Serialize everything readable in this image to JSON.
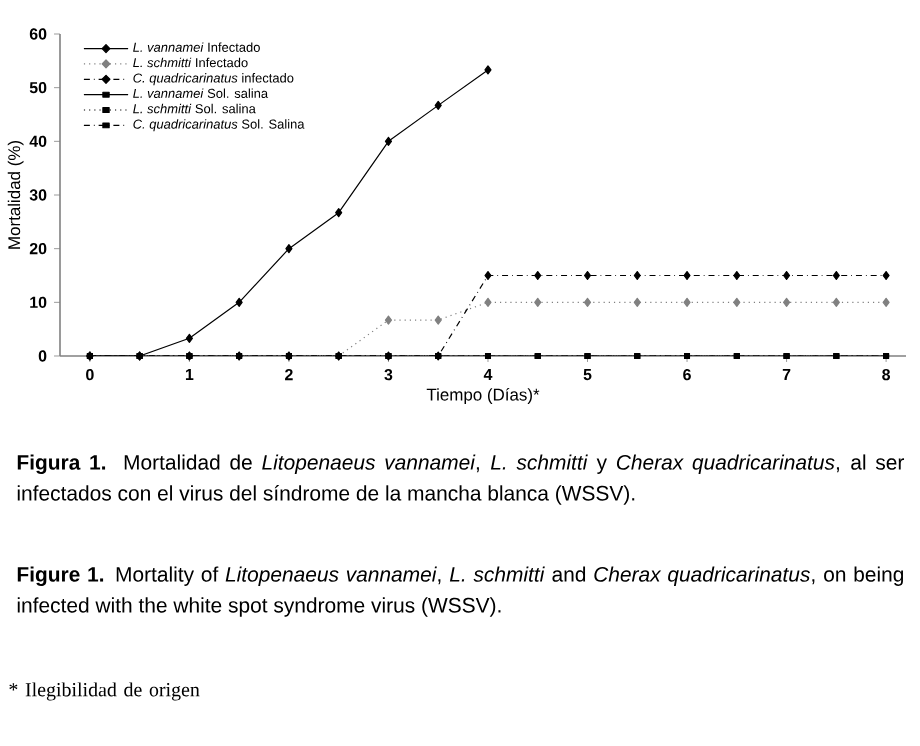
{
  "chart_data": {
    "type": "line",
    "xlabel": "Tiempo (Días)*",
    "ylabel": "Mortalidad (%)",
    "x": [
      0,
      0.5,
      1,
      1.5,
      2,
      2.5,
      3,
      3.5,
      4,
      4.5,
      5,
      5.5,
      6,
      6.5,
      7,
      7.5,
      8
    ],
    "series": [
      {
        "name": "*L. vannamei* Infectado",
        "color": "#000000",
        "marker": "diamond",
        "line_style": "solid",
        "values": [
          0,
          0,
          3.3,
          10,
          20,
          26.7,
          40,
          46.7,
          53.3,
          null,
          null,
          null,
          null,
          null,
          null,
          null,
          null
        ]
      },
      {
        "name": "*L. schmitti* Infectado",
        "color": "#808080",
        "marker": "diamond",
        "line_style": "dotted",
        "values": [
          0,
          0,
          0,
          0,
          0,
          0,
          6.7,
          6.7,
          10,
          10,
          10,
          10,
          10,
          10,
          10,
          10,
          10
        ]
      },
      {
        "name": "*C. quadricarinatus* infectado",
        "color": "#000000",
        "marker": "diamond",
        "line_style": "dashed",
        "values": [
          0,
          0,
          0,
          0,
          0,
          0,
          0,
          0,
          15,
          15,
          15,
          15,
          15,
          15,
          15,
          15,
          15
        ]
      },
      {
        "name": "*L. vannamei* Sol. salina",
        "color": "#000000",
        "marker": "square",
        "line_style": "solid",
        "values": [
          0,
          0,
          0,
          0,
          0,
          0,
          0,
          0,
          0,
          0,
          0,
          0,
          0,
          0,
          0,
          0,
          0
        ]
      },
      {
        "name": "*L. schmitti* Sol. salina",
        "color": "#000000",
        "marker": "square",
        "line_style": "dotted",
        "values": [
          0,
          0,
          0,
          0,
          0,
          0,
          0,
          0,
          0,
          0,
          0,
          0,
          0,
          0,
          0,
          0,
          0
        ]
      },
      {
        "name": "*C. quadricarinatus* Sol. Salina",
        "color": "#000000",
        "marker": "square",
        "line_style": "dashed",
        "values": [
          0,
          0,
          0,
          0,
          0,
          0,
          0,
          0,
          0,
          0,
          0,
          0,
          0,
          0,
          0,
          0,
          0
        ]
      }
    ],
    "xlim": [
      -0.3,
      8.2
    ],
    "ylim": [
      0,
      60
    ],
    "xticks": [
      0,
      1,
      2,
      3,
      4,
      5,
      6,
      7,
      8
    ],
    "yticks": [
      0,
      10,
      20,
      30,
      40,
      50,
      60
    ],
    "legend": "top left",
    "annotations": [
      "**Figura 1.** Mortalidad de *Litopenaeus vannamei*, *L. schmitti* y *Cherax quadricarinatus*, al ser infectados con el virus del síndrome de la mancha blanca (WSSV).",
      "**Figure 1.** Mortality of *Litopenaeus vannamei*, *L. schmitti* and *Cherax quadricarinatus*, on being infected with the white spot syndrome virus (WSSV).",
      "* Ilegibilidad de origen"
    ]
  }
}
